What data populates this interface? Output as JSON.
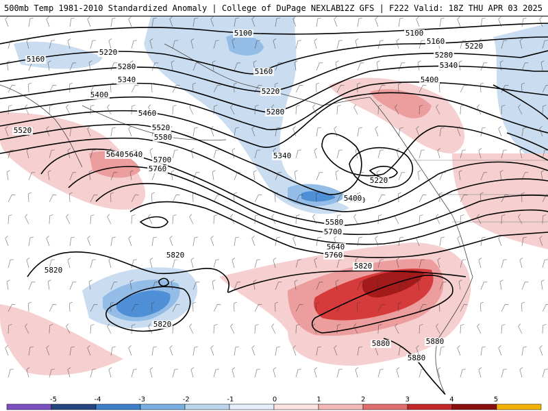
{
  "header": {
    "title": "500mb Temp 1981-2010 Standardized Anomaly | College of DuPage NEXLAB",
    "valid": "12Z GFS | F222 Valid: 18Z THU APR 03 2025"
  },
  "map": {
    "anomaly_colors": {
      "neg3": "#4f8fd6",
      "neg2": "#93bde6",
      "neg1": "#c9dcf0",
      "pos1": "#f6d0d0",
      "pos2": "#ec9d9d",
      "pos3": "#d63b3b",
      "pos4": "#a31a1a"
    },
    "contour_labels": [
      {
        "text": "5100"
      },
      {
        "text": "5160"
      },
      {
        "text": "5220"
      },
      {
        "text": "5280"
      },
      {
        "text": "5340"
      },
      {
        "text": "5400"
      },
      {
        "text": "5460"
      },
      {
        "text": "5520"
      },
      {
        "text": "5580"
      },
      {
        "text": "5640"
      },
      {
        "text": "5700"
      },
      {
        "text": "5760"
      },
      {
        "text": "5820"
      },
      {
        "text": "5160"
      },
      {
        "text": "5220"
      },
      {
        "text": "5280"
      },
      {
        "text": "5340"
      },
      {
        "text": "5400"
      },
      {
        "text": "5100"
      },
      {
        "text": "5160"
      },
      {
        "text": "5280"
      },
      {
        "text": "5220"
      },
      {
        "text": "5340"
      },
      {
        "text": "5400"
      },
      {
        "text": "5520"
      },
      {
        "text": "5640"
      },
      {
        "text": "5580"
      },
      {
        "text": "5700"
      },
      {
        "text": "5640"
      },
      {
        "text": "5760"
      },
      {
        "text": "5820"
      },
      {
        "text": "5880"
      },
      {
        "text": "5880"
      },
      {
        "text": "5820"
      },
      {
        "text": "5820"
      },
      {
        "text": "5820"
      },
      {
        "text": "5880"
      },
      {
        "text": "5400"
      },
      {
        "text": "5220"
      }
    ]
  },
  "colorbar": {
    "ticks": [
      "-5",
      "-4",
      "-3",
      "-2",
      "-1",
      "0",
      "1",
      "2",
      "3",
      "4",
      "5"
    ],
    "colors": [
      "#7a4fc0",
      "#26477e",
      "#3f7fc9",
      "#78aee0",
      "#bcd5ee",
      "#e4eef8",
      "#fbe3e3",
      "#f4b8b8",
      "#e06d6d",
      "#c42727",
      "#8a0f0f",
      "#f2b200"
    ]
  }
}
